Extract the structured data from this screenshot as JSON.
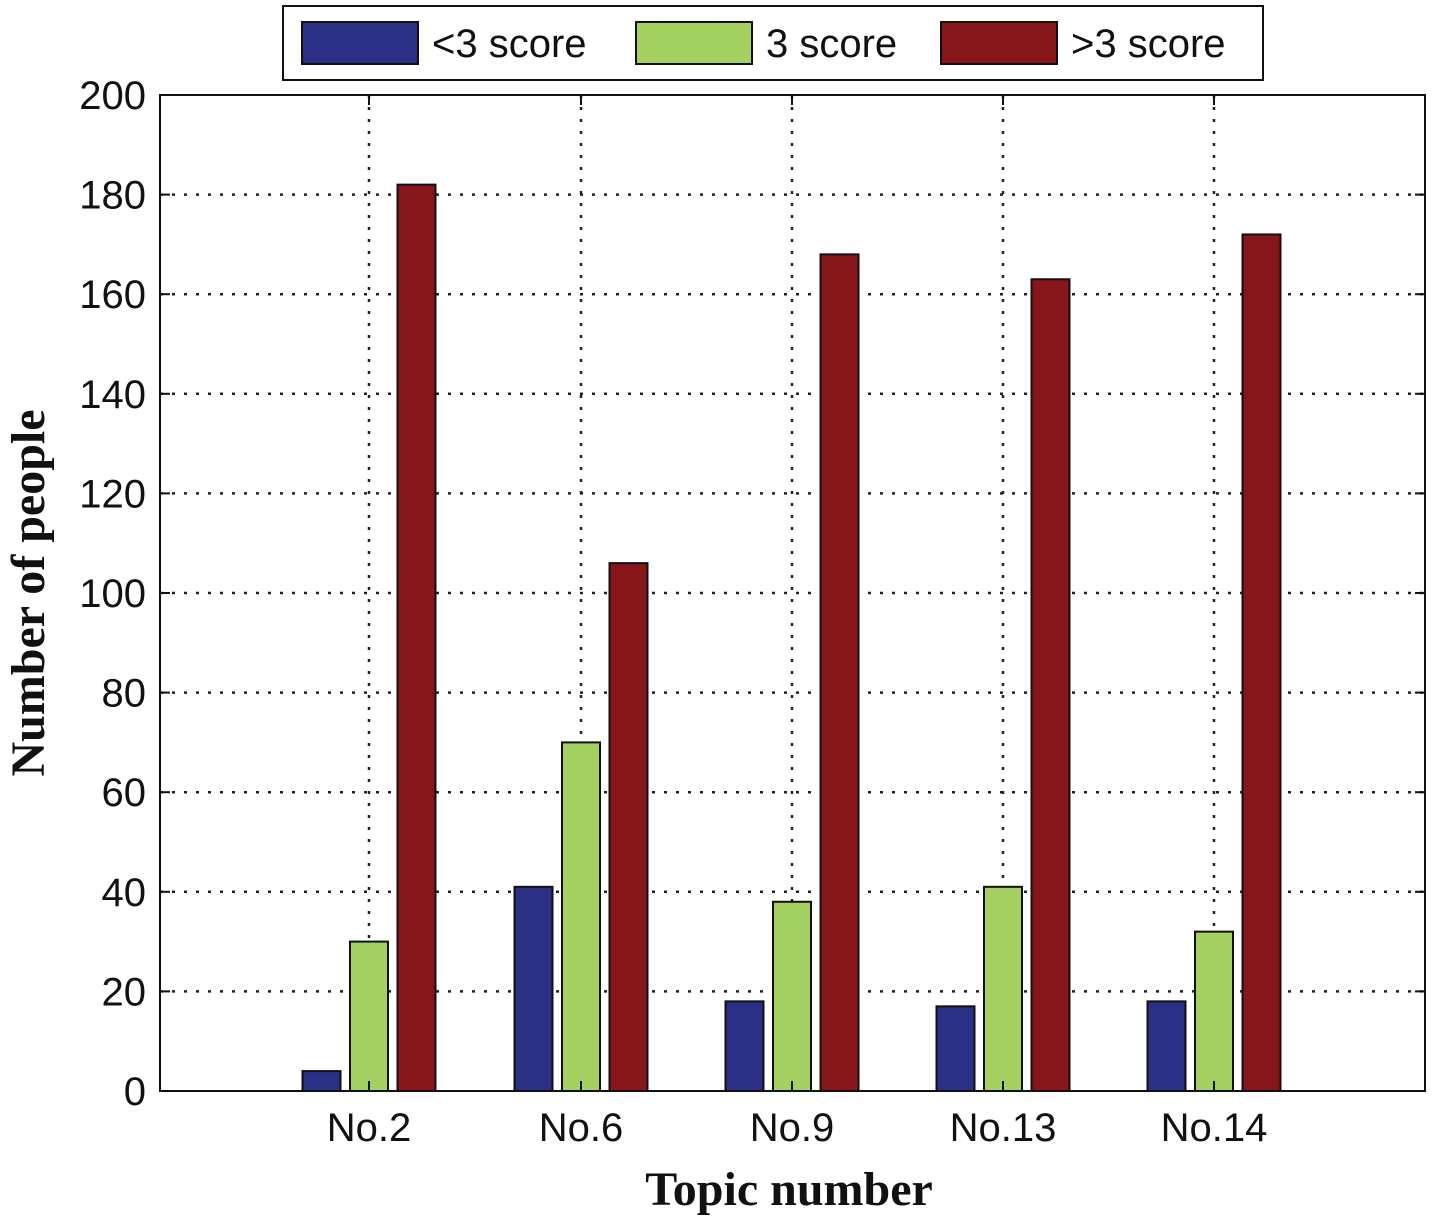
{
  "chart_data": {
    "type": "bar",
    "title": "",
    "xlabel": "Topic number",
    "ylabel": "Number of people",
    "categories": [
      "No.2",
      "No.6",
      "No.9",
      "No.13",
      "No.14"
    ],
    "series": [
      {
        "name": "<3 score",
        "color": "#2b2f86",
        "values": [
          4,
          41,
          18,
          17,
          18
        ]
      },
      {
        "name": "3 score",
        "color": "#a4d162",
        "values": [
          30,
          70,
          38,
          41,
          32
        ]
      },
      {
        "name": ">3 score",
        "color": "#86161a",
        "values": [
          182,
          106,
          168,
          163,
          172
        ]
      }
    ],
    "ylim": [
      0,
      200
    ],
    "yticks": [
      "0",
      "20",
      "40",
      "60",
      "80",
      "100",
      "120",
      "140",
      "160",
      "180",
      "200"
    ],
    "grid": true,
    "legend_position": "top-center"
  }
}
